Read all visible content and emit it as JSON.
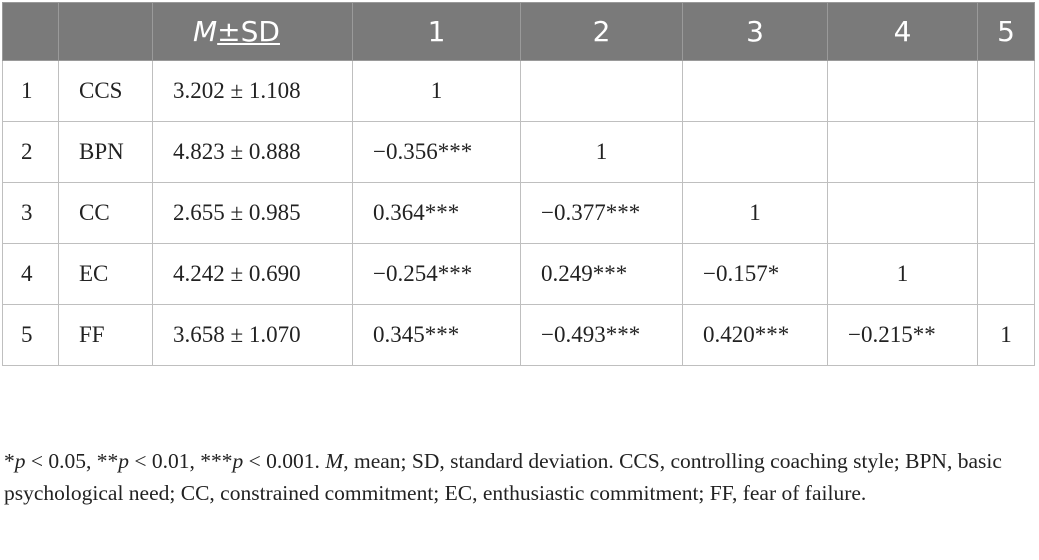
{
  "table": {
    "headers": [
      "",
      "",
      "M",
      "±SD",
      "1",
      "2",
      "3",
      "4",
      "5"
    ],
    "rows": [
      [
        "1",
        "CCS",
        "3.202 ± 1.108",
        "1",
        "",
        "",
        "",
        ""
      ],
      [
        "2",
        "BPN",
        "4.823 ± 0.888",
        "−0.356***",
        "1",
        "",
        "",
        ""
      ],
      [
        "3",
        "CC",
        "2.655 ± 0.985",
        "0.364***",
        "−0.377***",
        "1",
        "",
        ""
      ],
      [
        "4",
        "EC",
        "4.242 ± 0.690",
        "−0.254***",
        "0.249***",
        "−0.157*",
        "1",
        ""
      ],
      [
        "5",
        "FF",
        "3.658 ± 1.070",
        "0.345***",
        "−0.493***",
        "0.420***",
        "−0.215**",
        "1"
      ]
    ]
  },
  "note": {
    "p1_star": "*",
    "p1_var": "p",
    "p1_rest": " < 0.05, **",
    "p2_var": "p",
    "p2_rest": " < 0.01, ***",
    "p3_var": "p",
    "p3_rest": " < 0.001. ",
    "m_var": "M",
    "rest": ", mean; SD, standard deviation. CCS, controlling coaching style; BPN, basic psychological need; CC, constrained commitment; EC, enthusiastic commitment; FF, fear of failure."
  },
  "colors": {
    "header_bg": "#7a7a7a",
    "header_text": "#ffffff",
    "grid": "#bfbfbf",
    "text": "#222222"
  }
}
